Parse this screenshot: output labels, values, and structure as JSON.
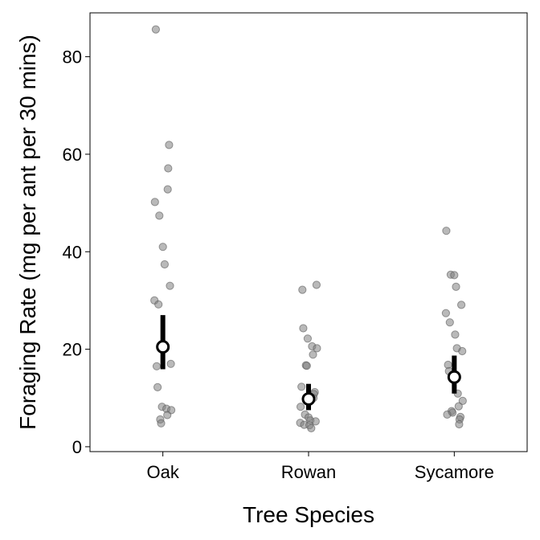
{
  "chart_data": {
    "type": "scatter",
    "xlabel": "Tree Species",
    "ylabel": "Foraging Rate (mg per ant per 30 mins)",
    "categories": [
      "Oak",
      "Rowan",
      "Sycamore"
    ],
    "ylim": [
      -1,
      89
    ],
    "yticks": [
      0,
      20,
      40,
      60,
      80
    ],
    "grid": false,
    "point_color": "#808080",
    "summary_color": "#000000",
    "points": {
      "Oak": [
        85.6,
        61.9,
        57.1,
        52.8,
        50.2,
        47.4,
        41.0,
        37.4,
        33.0,
        30.0,
        29.2,
        20.4,
        20.2,
        17.0,
        16.5,
        12.2,
        8.2,
        7.8,
        7.5,
        6.5,
        5.6,
        4.8
      ],
      "Rowan": [
        33.2,
        32.2,
        24.3,
        22.2,
        20.6,
        20.2,
        18.9,
        16.7,
        16.6,
        12.3,
        11.2,
        10.8,
        10.0,
        8.2,
        6.6,
        6.0,
        5.4,
        5.2,
        4.9,
        4.5,
        4.4,
        3.8
      ],
      "Sycamore": [
        44.3,
        35.3,
        35.2,
        32.8,
        29.1,
        27.4,
        25.5,
        23.0,
        20.2,
        19.6,
        16.8,
        15.5,
        14.5,
        10.9,
        9.4,
        8.3,
        7.3,
        7.0,
        6.6,
        6.1,
        5.6,
        4.6
      ]
    },
    "summary": [
      {
        "category": "Oak",
        "mean": 20.5,
        "lower": 15.9,
        "upper": 27.0
      },
      {
        "category": "Rowan",
        "mean": 9.8,
        "lower": 7.5,
        "upper": 12.9
      },
      {
        "category": "Sycamore",
        "mean": 14.3,
        "lower": 10.9,
        "upper": 18.7
      }
    ]
  }
}
